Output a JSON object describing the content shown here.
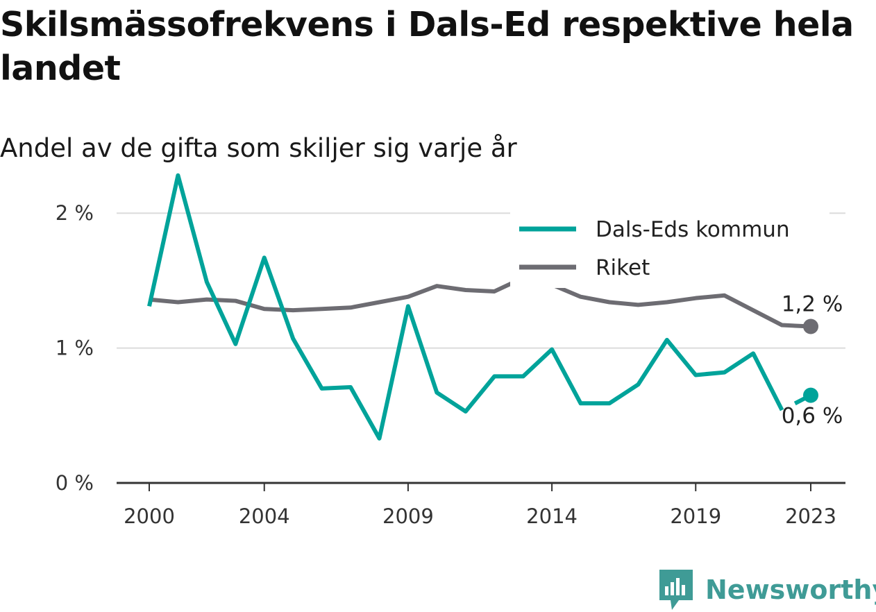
{
  "title": "Skilsmässofrekvens i Dals-Ed respektive hela landet",
  "subtitle": "Andel av de gifta som skiljer sig varje år",
  "brand": {
    "name": "Newsworthy",
    "color": "#3f9b96"
  },
  "chart_data": {
    "type": "line",
    "x": [
      2000,
      2001,
      2002,
      2003,
      2004,
      2005,
      2006,
      2007,
      2008,
      2009,
      2010,
      2011,
      2012,
      2013,
      2014,
      2015,
      2016,
      2017,
      2018,
      2019,
      2020,
      2021,
      2022,
      2023
    ],
    "x_tick_values": [
      2000,
      2004,
      2009,
      2014,
      2019,
      2023
    ],
    "x_tick_labels": [
      "2000",
      "2004",
      "2009",
      "2014",
      "2019",
      "2023"
    ],
    "ylim": [
      0,
      2.5
    ],
    "y_tick_values": [
      0,
      1,
      2
    ],
    "y_tick_labels": [
      "0 %",
      "1 %",
      "2 %"
    ],
    "grid": true,
    "legend_position": "top-right",
    "series": [
      {
        "name": "Dals-Eds kommun",
        "color": "#00a39a",
        "values": [
          1.31,
          2.28,
          1.49,
          1.03,
          1.67,
          1.07,
          0.7,
          0.71,
          0.33,
          1.31,
          0.67,
          0.53,
          0.79,
          0.79,
          0.99,
          0.59,
          0.59,
          0.73,
          1.06,
          0.8,
          0.82,
          0.96,
          0.54,
          0.65
        ],
        "gap_before_last": true,
        "end_label": "0,6 %"
      },
      {
        "name": "Riket",
        "color": "#6d6c72",
        "values": [
          1.36,
          1.34,
          1.36,
          1.35,
          1.29,
          1.28,
          1.29,
          1.3,
          1.34,
          1.38,
          1.46,
          1.43,
          1.42,
          1.52,
          1.47,
          1.38,
          1.34,
          1.32,
          1.34,
          1.37,
          1.39,
          1.28,
          1.17,
          1.16
        ],
        "end_label": "1,2 %"
      }
    ]
  }
}
